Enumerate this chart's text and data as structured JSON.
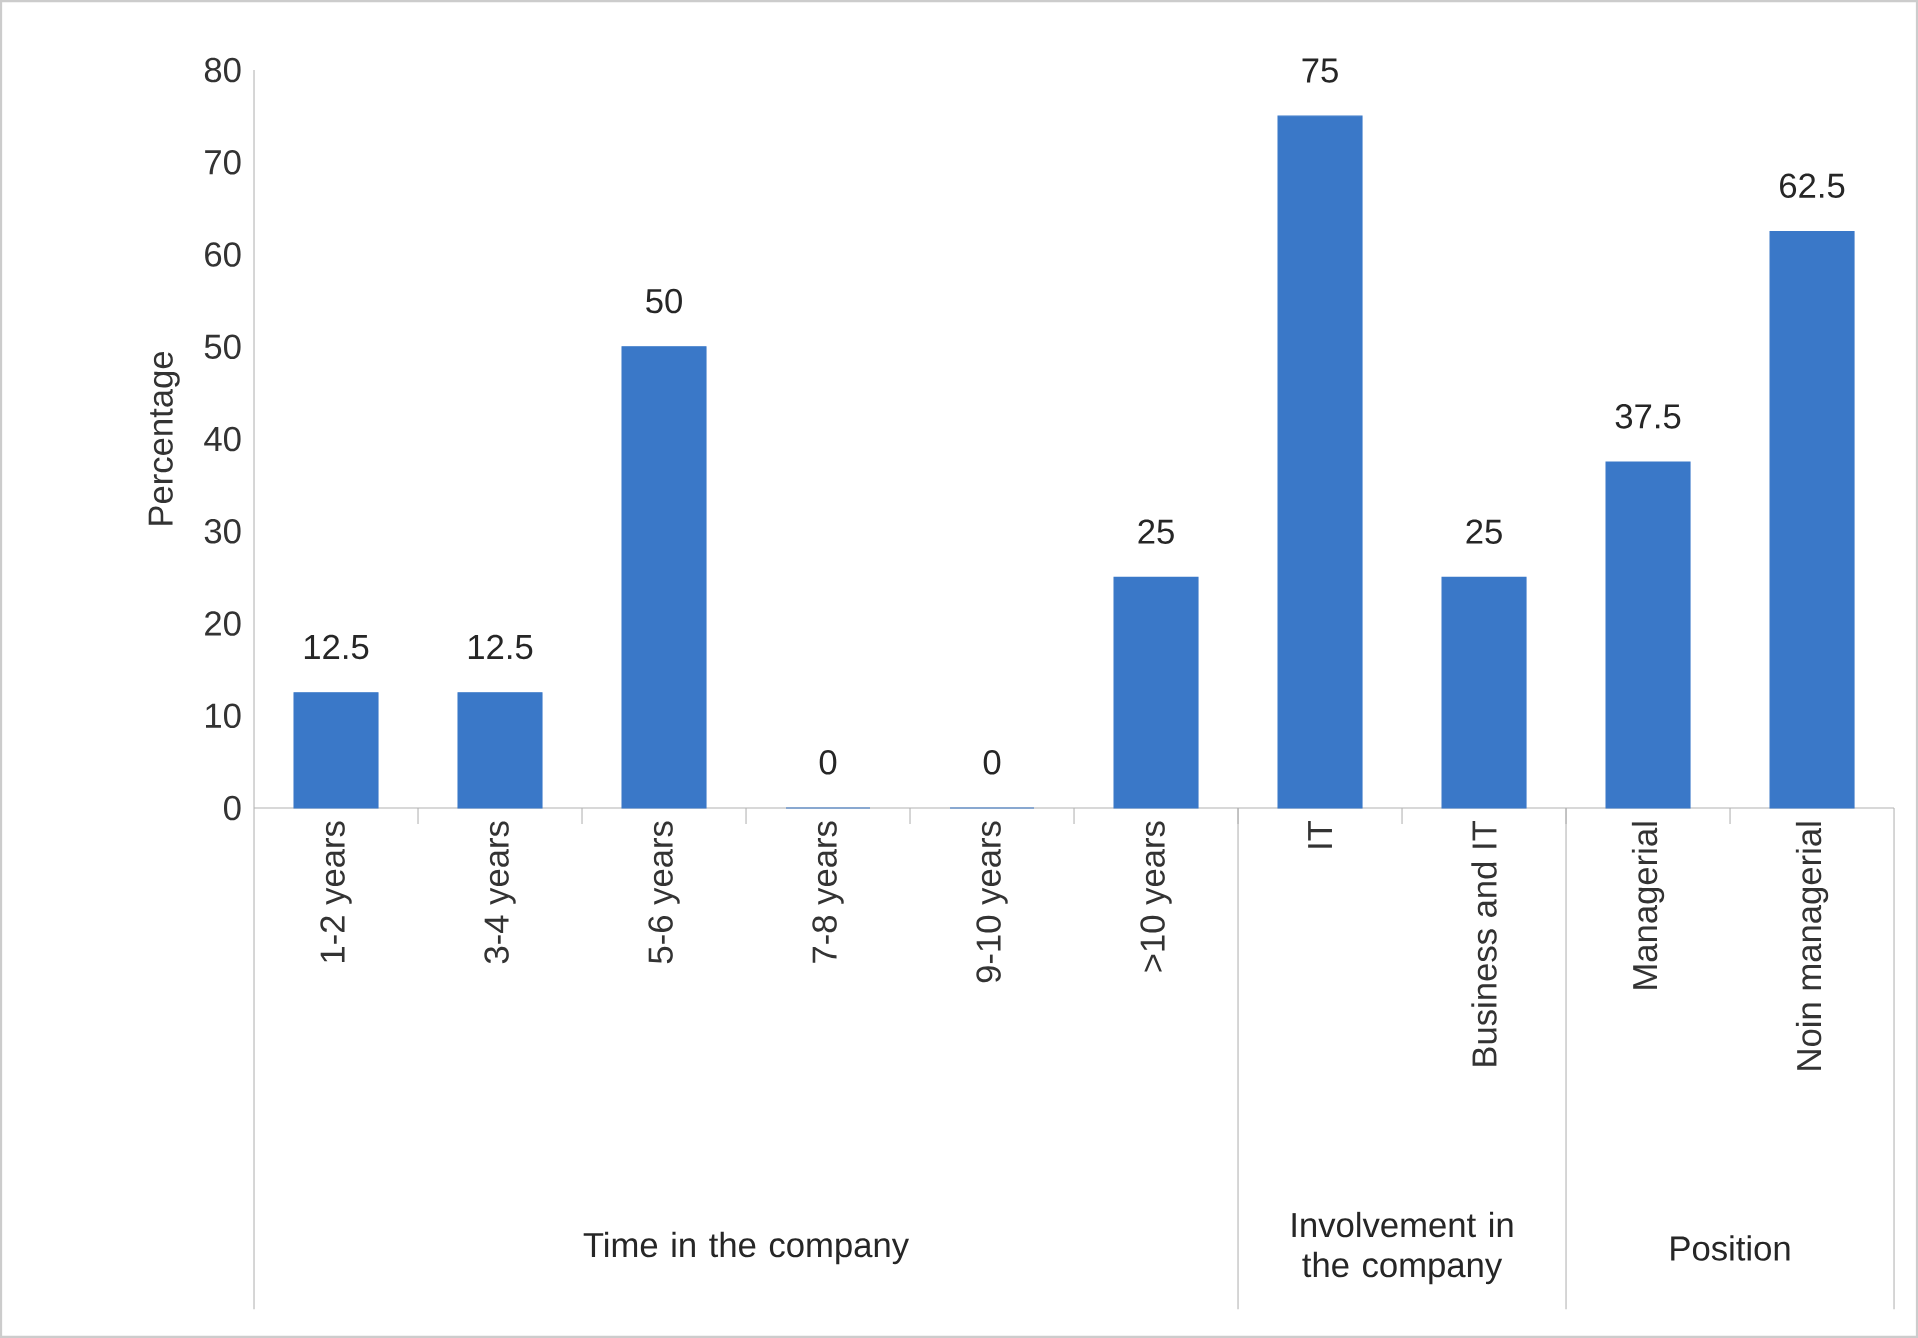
{
  "chart_data": {
    "type": "bar",
    "ylabel": "Percentage",
    "categories": [
      "1-2 years",
      "3-4 years",
      "5-6 years",
      "7-8 years",
      "9-10 years",
      ">10 years",
      "IT",
      "Business and IT",
      "Managerial",
      "Noin managerial"
    ],
    "values": [
      12.5,
      12.5,
      50,
      0,
      0,
      25,
      75,
      25,
      37.5,
      62.5
    ],
    "color": "#3a78c8",
    "ylim": [
      0,
      80
    ],
    "yticks": [
      0,
      10,
      20,
      30,
      40,
      50,
      60,
      70,
      80
    ],
    "data_labels": true,
    "annotations": [
      "Time in the company",
      "Involvement in the company",
      "Position"
    ]
  }
}
